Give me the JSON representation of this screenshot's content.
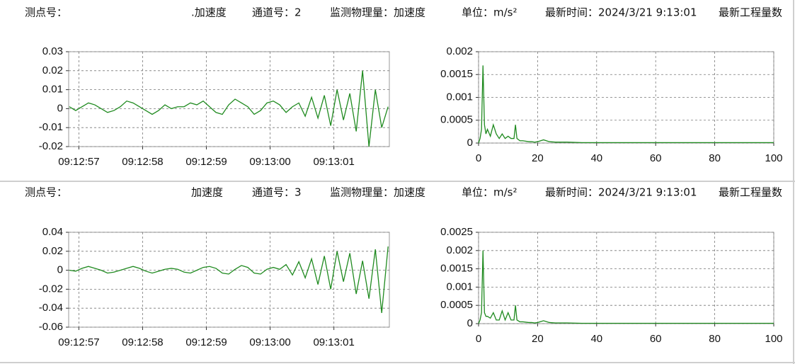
{
  "panels": [
    {
      "point_label": "测点号：",
      "name": ".加速度",
      "channel": "通道号：2",
      "quantity": "监测物理量：加速度",
      "unit": "单位：m/s²",
      "time": "最新时间：2024/3/21 9:13:01",
      "value_label": "最新工程量数"
    },
    {
      "point_label": "测点号：",
      "name": "加速度",
      "channel": "通道号：3",
      "quantity": "监测物理量：加速度",
      "unit": "单位：m/s²",
      "time": "最新时间：2024/3/21 9:13:01",
      "value_label": "最新工程量数"
    }
  ],
  "chart_data": [
    {
      "type": "line",
      "color": "#1f8a1f",
      "grid": true,
      "x": [
        56.85,
        56.95,
        57.05,
        57.15,
        57.25,
        57.35,
        57.45,
        57.55,
        57.65,
        57.75,
        57.85,
        57.95,
        58.05,
        58.15,
        58.25,
        58.35,
        58.45,
        58.55,
        58.65,
        58.75,
        58.85,
        58.95,
        59.05,
        59.15,
        59.25,
        59.35,
        59.45,
        59.55,
        59.65,
        59.75,
        59.85,
        59.95,
        60.05,
        60.15,
        60.25,
        60.35,
        60.45,
        60.55,
        60.65,
        60.75,
        60.85,
        60.95,
        61.05,
        61.15,
        61.25,
        61.35,
        61.45,
        61.55,
        61.65,
        61.75,
        61.85
      ],
      "values": [
        0.001,
        -0.001,
        0.001,
        0.003,
        0.002,
        0,
        -0.002,
        -0.001,
        0.001,
        0.004,
        0.003,
        0.001,
        -0.001,
        -0.003,
        -0.001,
        0.002,
        0,
        0.001,
        0.001,
        0.003,
        0.002,
        0.004,
        0.001,
        -0.002,
        -0.003,
        0.002,
        0.005,
        0.003,
        0.001,
        -0.003,
        -0.001,
        0.003,
        0.004,
        0.002,
        -0.002,
        0.001,
        0.003,
        -0.004,
        0.006,
        -0.005,
        0.007,
        -0.009,
        0.01,
        -0.006,
        0.008,
        -0.012,
        0.02,
        -0.02,
        0.01,
        -0.01,
        0.001
      ],
      "xlim": [
        56.84,
        61.87
      ],
      "xticks": [
        {
          "value": 57,
          "label": "09:12:57"
        },
        {
          "value": 58,
          "label": "09:12:58"
        },
        {
          "value": 59,
          "label": "09:12:59"
        },
        {
          "value": 60,
          "label": "09:13:00"
        },
        {
          "value": 61,
          "label": "09:13:01"
        }
      ],
      "ylim": [
        -0.02,
        0.03
      ],
      "yticks": [
        -0.02,
        -0.01,
        0,
        0.01,
        0.02,
        0.03
      ]
    },
    {
      "type": "line",
      "color": "#1f8a1f",
      "grid": true,
      "x": [
        0,
        0.5,
        1,
        1.5,
        2,
        2.5,
        3,
        4,
        5,
        6,
        7,
        8,
        9,
        10,
        11,
        12,
        12.5,
        13,
        14,
        15,
        16,
        17,
        18,
        19,
        20,
        22,
        24,
        26,
        28,
        30,
        35,
        40,
        45,
        50,
        55,
        60,
        65,
        70,
        75,
        80,
        85,
        90,
        95,
        100
      ],
      "values": [
        0,
        0.0001,
        0.0003,
        0.0017,
        0.0004,
        0.0002,
        0.0003,
        0.00015,
        0.0004,
        0.0002,
        0.0001,
        0.0002,
        0.0001,
        0.00015,
        0.0001,
        0.0001,
        0.0004,
        0.0001,
        5e-05,
        5e-05,
        4e-05,
        3e-05,
        3e-05,
        2e-05,
        3e-05,
        7e-05,
        3e-05,
        2e-05,
        2e-05,
        2e-05,
        1e-05,
        1e-05,
        1e-05,
        1e-05,
        1e-05,
        1e-05,
        1e-05,
        1e-05,
        1e-05,
        1e-05,
        1e-05,
        1e-05,
        1e-05,
        1e-05
      ],
      "xlim": [
        0,
        100
      ],
      "xticks": [
        0,
        20,
        40,
        60,
        80,
        100
      ],
      "ylim": [
        0,
        0.002
      ],
      "yticks": [
        0,
        0.0005,
        0.001,
        0.0015,
        0.002
      ]
    },
    {
      "type": "line",
      "color": "#1f8a1f",
      "grid": true,
      "x": [
        56.85,
        56.95,
        57.05,
        57.15,
        57.25,
        57.35,
        57.45,
        57.55,
        57.65,
        57.75,
        57.85,
        57.95,
        58.05,
        58.15,
        58.25,
        58.35,
        58.45,
        58.55,
        58.65,
        58.75,
        58.85,
        58.95,
        59.05,
        59.15,
        59.25,
        59.35,
        59.45,
        59.55,
        59.65,
        59.75,
        59.85,
        59.95,
        60.05,
        60.15,
        60.25,
        60.35,
        60.45,
        60.55,
        60.65,
        60.75,
        60.85,
        60.95,
        61.05,
        61.15,
        61.25,
        61.35,
        61.45,
        61.55,
        61.65,
        61.75,
        61.85
      ],
      "values": [
        0,
        -0.001,
        0.002,
        0.004,
        0.002,
        0,
        -0.003,
        -0.002,
        0,
        0.002,
        0.004,
        0.002,
        -0.001,
        -0.003,
        -0.001,
        0.001,
        0.002,
        0.001,
        -0.002,
        -0.003,
        0,
        0.003,
        0.004,
        0.002,
        -0.003,
        -0.004,
        0.001,
        0.005,
        0.003,
        -0.003,
        -0.004,
        0.001,
        0.003,
        0.001,
        0.006,
        -0.005,
        0.009,
        -0.008,
        0.012,
        -0.015,
        0.015,
        -0.02,
        0.02,
        -0.012,
        0.018,
        -0.025,
        0.01,
        -0.03,
        0.022,
        -0.045,
        0.025
      ],
      "xlim": [
        56.84,
        61.87
      ],
      "xticks": [
        {
          "value": 57,
          "label": "09:12:57"
        },
        {
          "value": 58,
          "label": "09:12:58"
        },
        {
          "value": 59,
          "label": "09:12:59"
        },
        {
          "value": 60,
          "label": "09:13:00"
        },
        {
          "value": 61,
          "label": "09:13:01"
        }
      ],
      "ylim": [
        -0.06,
        0.04
      ],
      "yticks": [
        -0.06,
        -0.04,
        -0.02,
        0,
        0.02,
        0.04
      ]
    },
    {
      "type": "line",
      "color": "#1f8a1f",
      "grid": true,
      "x": [
        0,
        0.5,
        1,
        1.5,
        2,
        2.5,
        3,
        4,
        5,
        6,
        7,
        8,
        9,
        10,
        11,
        12,
        12.5,
        13,
        14,
        15,
        16,
        17,
        18,
        19,
        20,
        22,
        24,
        26,
        28,
        30,
        35,
        40,
        45,
        50,
        55,
        60,
        65,
        70,
        75,
        80,
        85,
        90,
        95,
        100
      ],
      "values": [
        0,
        0.0001,
        0.0003,
        0.002,
        0.0003,
        0.0002,
        0.0002,
        0.00015,
        0.0003,
        0.0001,
        0.0001,
        0.00035,
        0.0001,
        0.0003,
        0.0001,
        0.0001,
        0.0005,
        0.0001,
        5e-05,
        5e-05,
        4e-05,
        3e-05,
        3e-05,
        2e-05,
        3e-05,
        8e-05,
        3e-05,
        2e-05,
        2e-05,
        2e-05,
        1e-05,
        1e-05,
        1e-05,
        1e-05,
        1e-05,
        1e-05,
        1e-05,
        1e-05,
        1e-05,
        1e-05,
        1e-05,
        1e-05,
        1e-05,
        1e-05
      ],
      "xlim": [
        0,
        100
      ],
      "xticks": [
        0,
        20,
        40,
        60,
        80,
        100
      ],
      "ylim": [
        0,
        0.0025
      ],
      "yticks": [
        0,
        0.0005,
        0.001,
        0.0015,
        0.002,
        0.0025
      ]
    }
  ]
}
